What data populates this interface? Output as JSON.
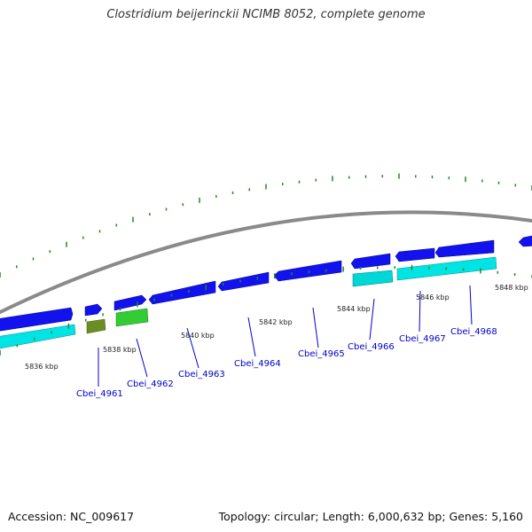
{
  "title": "Clostridium beijerinckii NCIMB 8052, complete genome",
  "footer": {
    "accession": "Accession: NC_009617",
    "topology": "Topology: circular; Length: 6,000,632 bp; Genes: 5,160"
  },
  "colors": {
    "backbone": "#888888",
    "forward_gene": "#1010ee",
    "reverse_gene": "#00dddd",
    "rna_gene_olive": "#6b8e23",
    "rna_gene_green": "#33cc33",
    "gc_ticks": "#228b22",
    "label_text": "#0000cc"
  },
  "scale_labels": [
    "5836 kbp",
    "5838 kbp",
    "5840 kbp",
    "5842 kbp",
    "5844 kbp",
    "5846 kbp",
    "5848 kbp"
  ],
  "gene_labels": [
    "Cbei_4961",
    "Cbei_4962",
    "Cbei_4963",
    "Cbei_4964",
    "Cbei_4965",
    "Cbei_4966",
    "Cbei_4967",
    "Cbei_4968"
  ]
}
